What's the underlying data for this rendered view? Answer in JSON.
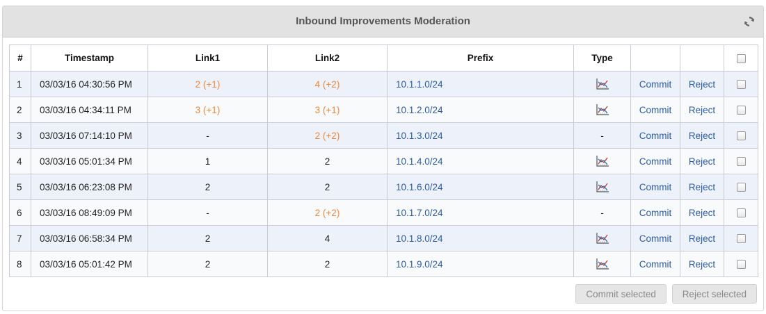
{
  "panel": {
    "title": "Inbound Improvements Moderation",
    "refresh_icon": "refresh-icon"
  },
  "table": {
    "headers": {
      "num": "#",
      "timestamp": "Timestamp",
      "link1": "Link1",
      "link2": "Link2",
      "prefix": "Prefix",
      "type": "Type",
      "commit": "",
      "reject": ""
    },
    "rows": [
      {
        "num": "1",
        "timestamp": "03/03/16 04:30:56 PM",
        "link1": "2 (+1)",
        "link1_highlight": true,
        "link2": "4 (+2)",
        "link2_highlight": true,
        "prefix": "10.1.1.0/24",
        "type": "chart-icon",
        "commit": "Commit",
        "reject": "Reject"
      },
      {
        "num": "2",
        "timestamp": "03/03/16 04:34:11 PM",
        "link1": "3 (+1)",
        "link1_highlight": true,
        "link2": "3 (+1)",
        "link2_highlight": true,
        "prefix": "10.1.2.0/24",
        "type": "chart-icon",
        "commit": "Commit",
        "reject": "Reject"
      },
      {
        "num": "3",
        "timestamp": "03/03/16 07:14:10 PM",
        "link1": "-",
        "link1_highlight": false,
        "link2": "2 (+2)",
        "link2_highlight": true,
        "prefix": "10.1.3.0/24",
        "type": "-",
        "commit": "Commit",
        "reject": "Reject"
      },
      {
        "num": "4",
        "timestamp": "03/03/16 05:01:34 PM",
        "link1": "1",
        "link1_highlight": false,
        "link2": "2",
        "link2_highlight": false,
        "prefix": "10.1.4.0/24",
        "type": "chart-icon",
        "commit": "Commit",
        "reject": "Reject"
      },
      {
        "num": "5",
        "timestamp": "03/03/16 06:23:08 PM",
        "link1": "2",
        "link1_highlight": false,
        "link2": "2",
        "link2_highlight": false,
        "prefix": "10.1.6.0/24",
        "type": "chart-icon",
        "commit": "Commit",
        "reject": "Reject"
      },
      {
        "num": "6",
        "timestamp": "03/03/16 08:49:09 PM",
        "link1": "-",
        "link1_highlight": false,
        "link2": "2 (+2)",
        "link2_highlight": true,
        "prefix": "10.1.7.0/24",
        "type": "-",
        "commit": "Commit",
        "reject": "Reject"
      },
      {
        "num": "7",
        "timestamp": "03/03/16 06:58:34 PM",
        "link1": "2",
        "link1_highlight": false,
        "link2": "4",
        "link2_highlight": false,
        "prefix": "10.1.8.0/24",
        "type": "chart-icon",
        "commit": "Commit",
        "reject": "Reject"
      },
      {
        "num": "8",
        "timestamp": "03/03/16 05:01:42 PM",
        "link1": "2",
        "link1_highlight": false,
        "link2": "2",
        "link2_highlight": false,
        "prefix": "10.1.9.0/24",
        "type": "chart-icon",
        "commit": "Commit",
        "reject": "Reject"
      }
    ]
  },
  "footer": {
    "commit_selected": "Commit selected",
    "reject_selected": "Reject selected"
  },
  "colors": {
    "highlight": "#f0883a",
    "link": "#2b5aa8",
    "row_alt": "#edf2fa"
  }
}
